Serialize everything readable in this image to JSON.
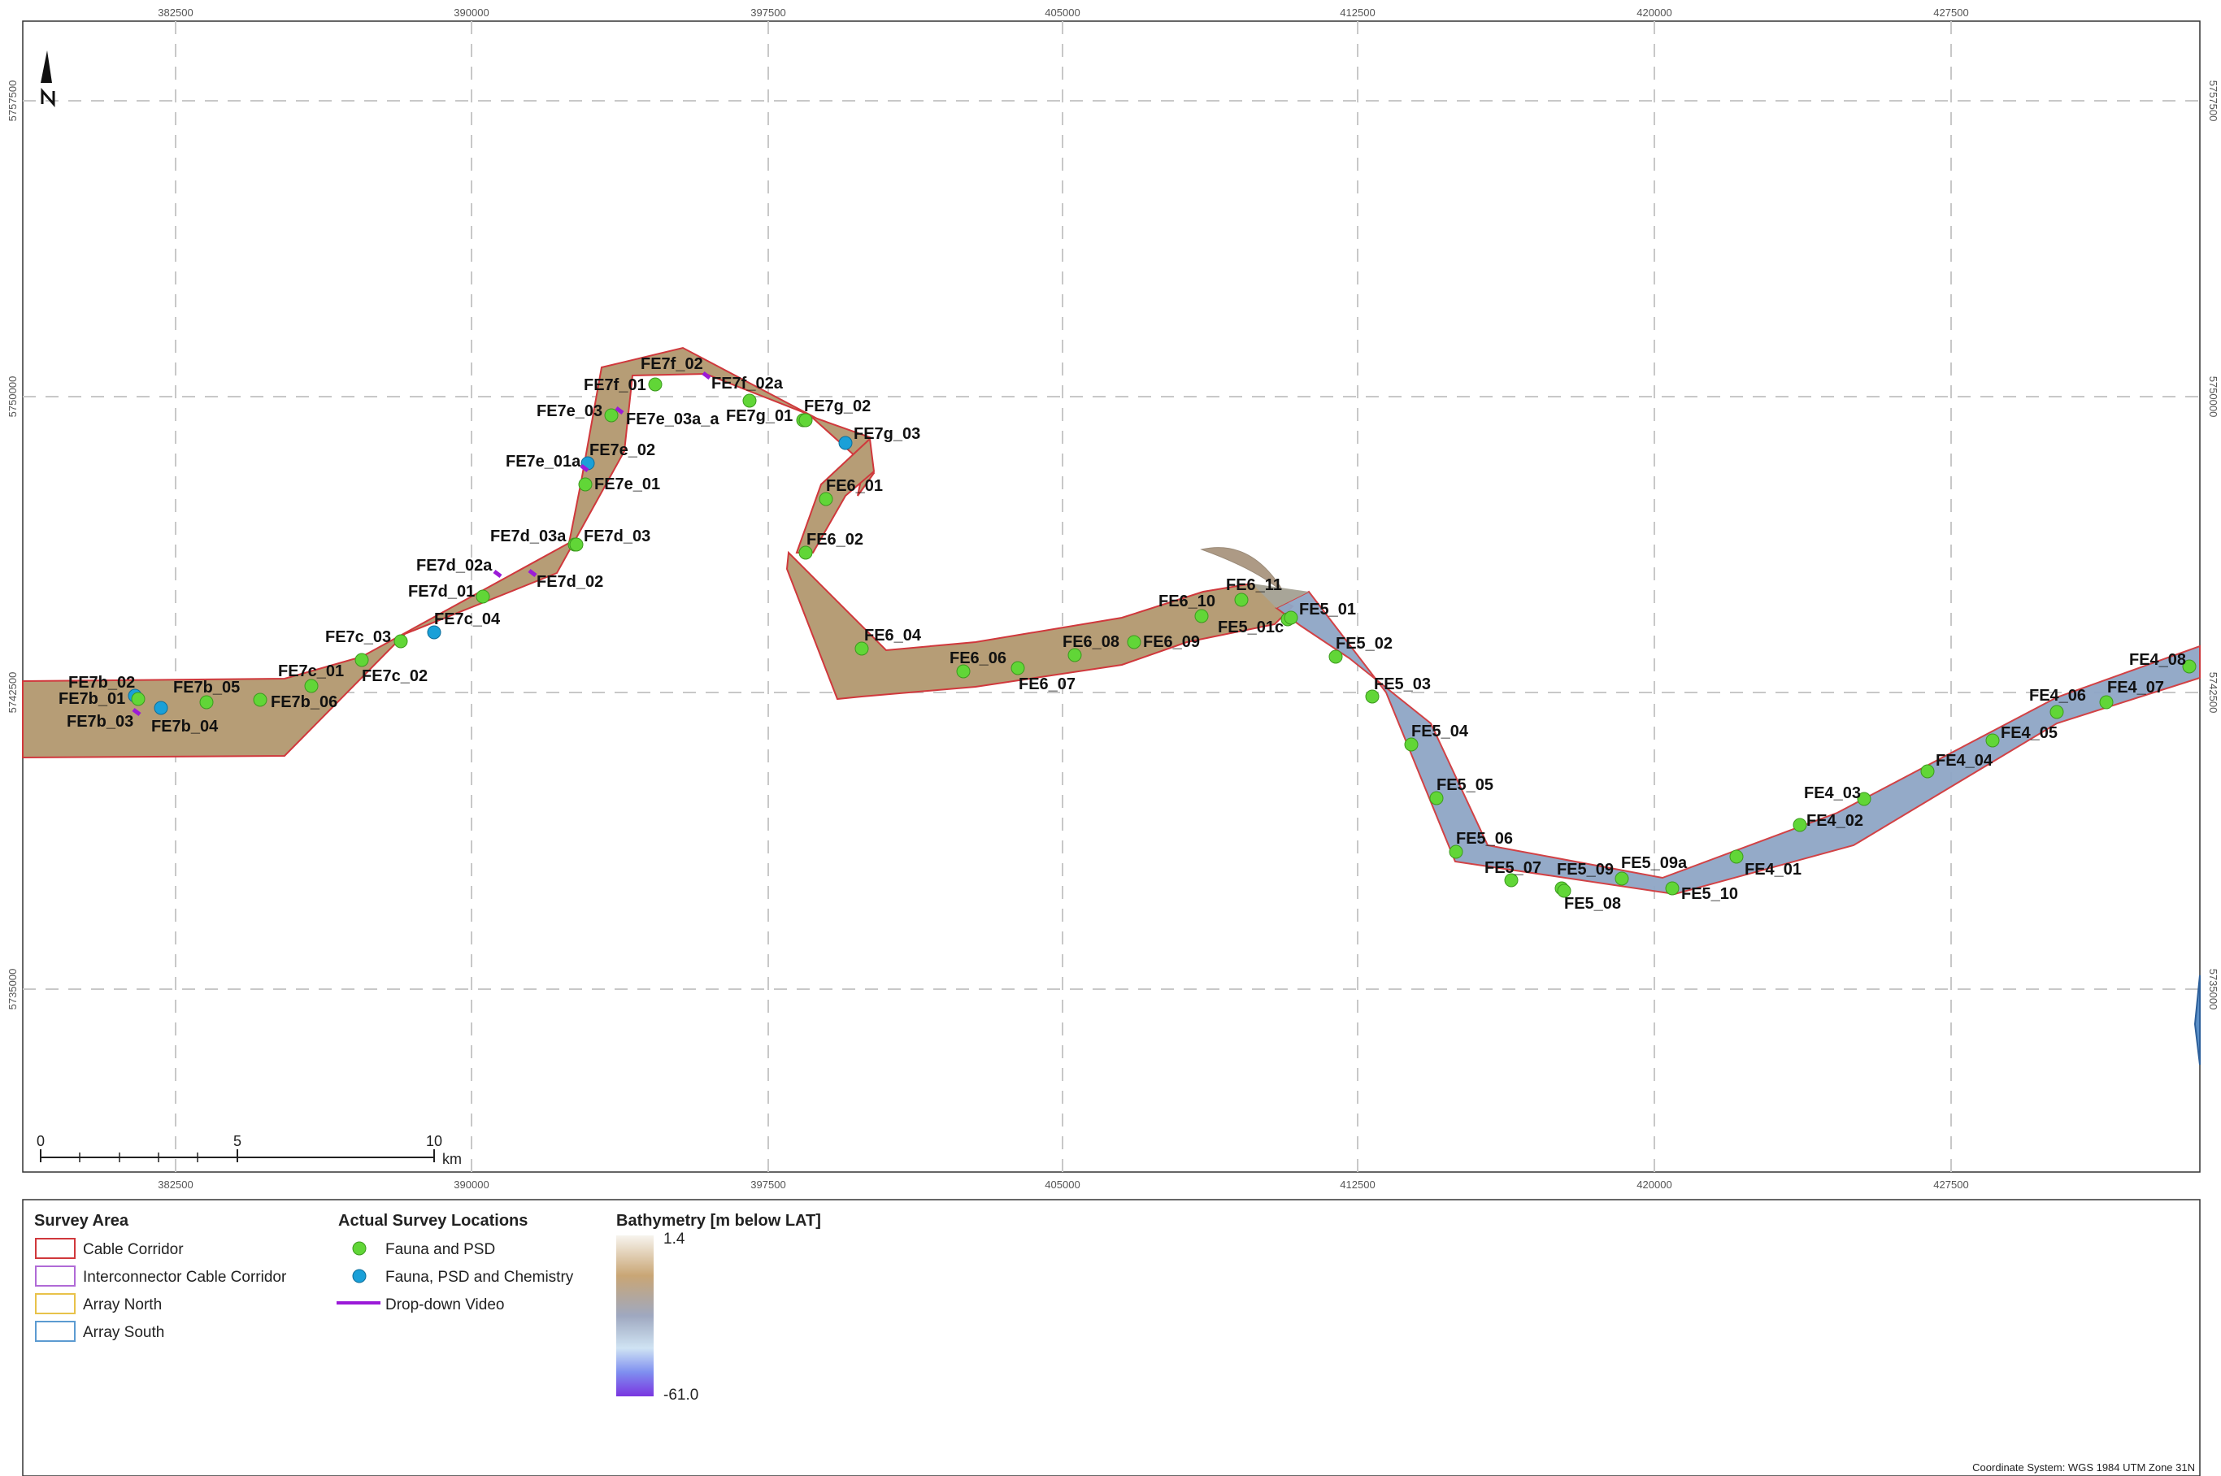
{
  "colors": {
    "corridor_outline": "#d0383c",
    "interconnector_outline": "#b06ad6",
    "array_north_outline": "#e8c24a",
    "array_south_outline": "#5c9bd1",
    "fauna_psd": "#61d637",
    "fauna_psd_chem": "#1aa0d8",
    "video": "#9b1ad8",
    "shallow": "#b49a72",
    "deep": "#8fa6c8"
  },
  "grid": {
    "x_ticks": [
      "382500",
      "390000",
      "397500",
      "405000",
      "412500",
      "420000",
      "427500"
    ],
    "y_ticks": [
      "5757500",
      "5750000",
      "5742500",
      "5735000"
    ]
  },
  "north_arrow": {
    "label": "N"
  },
  "stations": [
    {
      "id": "FE7b_02",
      "type": "fauna_psd_chem"
    },
    {
      "id": "FE7b_01",
      "type": "fauna_psd"
    },
    {
      "id": "FE7b_03",
      "type": "video"
    },
    {
      "id": "FE7b_04",
      "type": "fauna_psd_chem"
    },
    {
      "id": "FE7b_05",
      "type": "fauna_psd"
    },
    {
      "id": "FE7b_06",
      "type": "fauna_psd"
    },
    {
      "id": "FE7c_01",
      "type": "fauna_psd"
    },
    {
      "id": "FE7c_02",
      "type": "fauna_psd"
    },
    {
      "id": "FE7c_03",
      "type": "fauna_psd"
    },
    {
      "id": "FE7c_04",
      "type": "fauna_psd_chem"
    },
    {
      "id": "FE7d_01",
      "type": "fauna_psd"
    },
    {
      "id": "FE7d_02a",
      "type": "video"
    },
    {
      "id": "FE7d_02",
      "type": "video"
    },
    {
      "id": "FE7d_03a",
      "type": "fauna_psd"
    },
    {
      "id": "FE7d_03",
      "type": "fauna_psd"
    },
    {
      "id": "FE7e_01a",
      "type": "fauna_psd_chem"
    },
    {
      "id": "FE7e_02",
      "type": "video"
    },
    {
      "id": "FE7e_01",
      "type": "fauna_psd"
    },
    {
      "id": "FE7e_03",
      "type": "fauna_psd"
    },
    {
      "id": "FE7e_03a_a",
      "type": "video"
    },
    {
      "id": "FE7f_01",
      "type": "fauna_psd"
    },
    {
      "id": "FE7f_02",
      "type": "video"
    },
    {
      "id": "FE7f_02a",
      "type": "fauna_psd"
    },
    {
      "id": "FE7g_01",
      "type": "fauna_psd"
    },
    {
      "id": "FE7g_02",
      "type": "fauna_psd"
    },
    {
      "id": "FE7g_03",
      "type": "fauna_psd_chem"
    },
    {
      "id": "FE6_01",
      "type": "fauna_psd"
    },
    {
      "id": "FE6_02",
      "type": "fauna_psd"
    },
    {
      "id": "FE6_04",
      "type": "fauna_psd"
    },
    {
      "id": "FE6_06",
      "type": "fauna_psd"
    },
    {
      "id": "FE6_07",
      "type": "fauna_psd"
    },
    {
      "id": "FE6_08",
      "type": "fauna_psd"
    },
    {
      "id": "FE6_09",
      "type": "fauna_psd"
    },
    {
      "id": "FE6_10",
      "type": "fauna_psd"
    },
    {
      "id": "FE6_11",
      "type": "fauna_psd"
    },
    {
      "id": "FE5_01c",
      "type": "fauna_psd"
    },
    {
      "id": "FE5_01",
      "type": "fauna_psd"
    },
    {
      "id": "FE5_02",
      "type": "fauna_psd"
    },
    {
      "id": "FE5_03",
      "type": "fauna_psd"
    },
    {
      "id": "FE5_04",
      "type": "fauna_psd"
    },
    {
      "id": "FE5_05",
      "type": "fauna_psd"
    },
    {
      "id": "FE5_06",
      "type": "fauna_psd"
    },
    {
      "id": "FE5_07",
      "type": "fauna_psd"
    },
    {
      "id": "FE5_09",
      "type": "fauna_psd"
    },
    {
      "id": "FE5_08",
      "type": "fauna_psd"
    },
    {
      "id": "FE5_09a",
      "type": "fauna_psd"
    },
    {
      "id": "FE5_10",
      "type": "fauna_psd"
    },
    {
      "id": "FE4_01",
      "type": "fauna_psd"
    },
    {
      "id": "FE4_02",
      "type": "fauna_psd"
    },
    {
      "id": "FE4_03",
      "type": "fauna_psd"
    },
    {
      "id": "FE4_04",
      "type": "fauna_psd"
    },
    {
      "id": "FE4_05",
      "type": "fauna_psd"
    },
    {
      "id": "FE4_06",
      "type": "fauna_psd"
    },
    {
      "id": "FE4_07",
      "type": "fauna_psd"
    },
    {
      "id": "FE4_08",
      "type": "fauna_psd"
    }
  ],
  "scale_bar": {
    "labels": [
      "0",
      "5",
      "10"
    ],
    "unit": "km"
  },
  "legend": {
    "survey_area": {
      "title": "Survey Area",
      "items": [
        "Cable Corridor",
        "Interconnector Cable Corridor",
        "Array North",
        "Array South"
      ]
    },
    "survey_locations": {
      "title": "Actual Survey Locations",
      "items": [
        "Fauna and PSD",
        "Fauna, PSD and Chemistry",
        "Drop-down Video"
      ]
    },
    "bathymetry": {
      "title": "Bathymetry [m below LAT]",
      "max": "1.4",
      "min": "-61.0"
    }
  },
  "coordinate_system": "Coordinate System: WGS 1984 UTM Zone 31N"
}
